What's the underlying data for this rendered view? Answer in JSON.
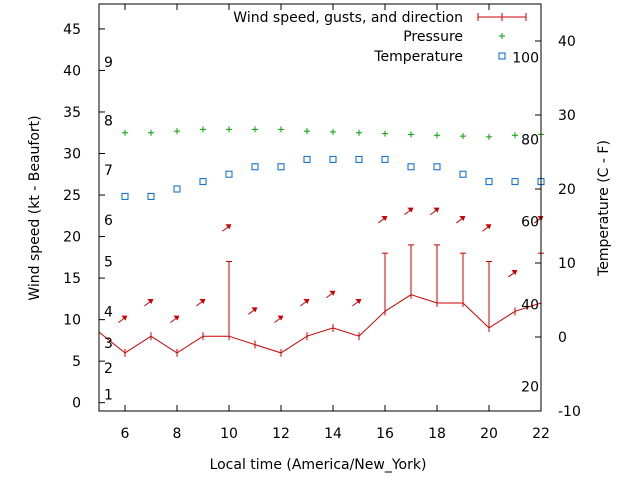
{
  "chart_data": {
    "type": "line",
    "xlabel": "Local time (America/New_York)",
    "ylabel_left": "Wind speed (kt - Beaufort)",
    "ylabel_right": "Temperature (C - F)",
    "xlim": [
      5,
      22
    ],
    "ylim_left": [
      -1,
      48
    ],
    "ylim_right": [
      -10,
      45
    ],
    "x_ticks": [
      6,
      8,
      10,
      12,
      14,
      16,
      18,
      20,
      22
    ],
    "y_left_ticks": [
      0,
      5,
      10,
      15,
      20,
      25,
      30,
      35,
      40,
      45
    ],
    "y_right_ticks": [
      -10,
      0,
      10,
      20,
      30,
      40
    ],
    "beaufort_labels": [
      {
        "label": "1",
        "kt": 1
      },
      {
        "label": "2",
        "kt": 4.2
      },
      {
        "label": "3",
        "kt": 7.2
      },
      {
        "label": "4",
        "kt": 11
      },
      {
        "label": "5",
        "kt": 17
      },
      {
        "label": "6",
        "kt": 22
      },
      {
        "label": "7",
        "kt": 28
      },
      {
        "label": "8",
        "kt": 34
      },
      {
        "label": "9",
        "kt": 41
      }
    ],
    "fahrenheit_labels": [
      {
        "label": "20",
        "c": -6.7
      },
      {
        "label": "40",
        "c": 4.4
      },
      {
        "label": "60",
        "c": 15.6
      },
      {
        "label": "80",
        "c": 26.7
      },
      {
        "label": "100",
        "c": 37.8
      }
    ],
    "legend": {
      "position": "top-right",
      "wind": "Wind speed, gusts, and direction",
      "pressure": "Pressure",
      "temperature": "Temperature"
    },
    "colors": {
      "wind": "#cc0000",
      "pressure": "#00a000",
      "temperature": "#0066cc"
    },
    "series": [
      {
        "name": "Wind speed, gusts, and direction",
        "x": [
          5,
          6,
          7,
          8,
          9,
          10,
          11,
          12,
          13,
          14,
          15,
          16,
          17,
          18,
          19,
          20,
          21,
          22
        ],
        "values": [
          8.5,
          6,
          8,
          6,
          8,
          8,
          7,
          6,
          8,
          9,
          8,
          11,
          13,
          12,
          12,
          9,
          11,
          12
        ],
        "gusts": [
          null,
          null,
          null,
          null,
          null,
          17,
          null,
          null,
          null,
          null,
          null,
          18,
          19,
          19,
          18,
          17,
          null,
          18
        ],
        "direction_arrows": [
          {
            "x": 5.9,
            "kt": 10
          },
          {
            "x": 6.9,
            "kt": 12
          },
          {
            "x": 7.9,
            "kt": 10
          },
          {
            "x": 8.9,
            "kt": 12
          },
          {
            "x": 9.9,
            "kt": 21
          },
          {
            "x": 10.9,
            "kt": 11
          },
          {
            "x": 11.9,
            "kt": 10
          },
          {
            "x": 12.9,
            "kt": 12
          },
          {
            "x": 13.9,
            "kt": 13
          },
          {
            "x": 14.9,
            "kt": 12
          },
          {
            "x": 15.9,
            "kt": 22
          },
          {
            "x": 16.9,
            "kt": 23
          },
          {
            "x": 17.9,
            "kt": 23
          },
          {
            "x": 18.9,
            "kt": 22
          },
          {
            "x": 19.9,
            "kt": 21
          },
          {
            "x": 20.9,
            "kt": 15.5
          },
          {
            "x": 21.9,
            "kt": 22
          }
        ]
      },
      {
        "name": "Pressure",
        "x": [
          6,
          7,
          8,
          9,
          10,
          11,
          12,
          13,
          14,
          15,
          16,
          17,
          18,
          19,
          20,
          21,
          22
        ],
        "values": [
          32.5,
          32.5,
          32.7,
          32.9,
          32.9,
          32.9,
          32.9,
          32.7,
          32.6,
          32.5,
          32.4,
          32.3,
          32.2,
          32.1,
          32.0,
          32.2,
          32.3
        ]
      },
      {
        "name": "Temperature",
        "x": [
          6,
          7,
          8,
          9,
          10,
          11,
          12,
          13,
          14,
          15,
          16,
          17,
          18,
          19,
          20,
          21,
          22
        ],
        "values": [
          19,
          19,
          20,
          21,
          22,
          23,
          23,
          24,
          24,
          24,
          24,
          23,
          23,
          22,
          21,
          21,
          21
        ]
      }
    ]
  }
}
